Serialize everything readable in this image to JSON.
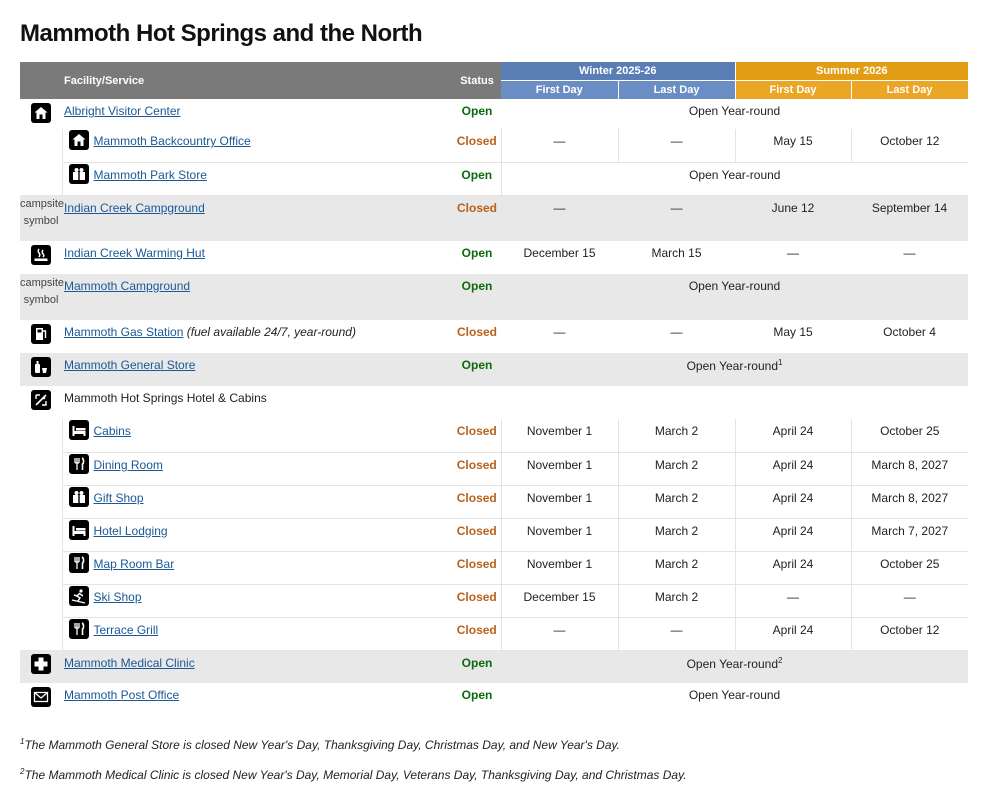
{
  "title": "Mammoth Hot Springs and the North",
  "table": {
    "headers": {
      "facility": "Facility/Service",
      "status": "Status",
      "winter": "Winter 2025-26",
      "summer": "Summer 2026",
      "days": [
        "First Day",
        "Last Day",
        "First Day",
        "Last Day"
      ]
    },
    "status_colors": {
      "Open": "#0b6b0b",
      "Closed": "#b8621b"
    },
    "rows": [
      {
        "name": "Albright Visitor Center",
        "status": "Open",
        "season": "Open Year-round",
        "children": [
          {
            "name": "Mammoth Backcountry Office",
            "status": "Closed",
            "dates": [
              "—",
              "—",
              "May 15",
              "October 12"
            ]
          },
          {
            "name": "Mammoth Park Store",
            "status": "Open",
            "season": "Open Year-round"
          }
        ]
      },
      {
        "name": "Indian Creek Campground",
        "icon_alt": "campsite symbol",
        "status": "Closed",
        "dates": [
          "—",
          "—",
          "June 12",
          "September 14"
        ]
      },
      {
        "name": "Indian Creek Warming Hut",
        "status": "Open",
        "dates": [
          "December 15",
          "March 15",
          "—",
          "—"
        ]
      },
      {
        "name": "Mammoth Campground",
        "icon_alt": "campsite symbol",
        "status": "Open",
        "season": "Open Year-round"
      },
      {
        "name": "Mammoth Gas Station",
        "note": "(fuel available 24/7, year-round)",
        "status": "Closed",
        "dates": [
          "—",
          "—",
          "May 15",
          "October 4"
        ]
      },
      {
        "name": "Mammoth General Store",
        "status": "Open",
        "season": "Open Year-round",
        "footnote_ref": "1"
      },
      {
        "name": "Mammoth Hot Springs Hotel & Cabins",
        "children": [
          {
            "name": "Cabins",
            "status": "Closed",
            "dates": [
              "November 1",
              "March 2",
              "April 24",
              "October 25"
            ]
          },
          {
            "name": "Dining Room",
            "status": "Closed",
            "dates": [
              "November 1",
              "March 2",
              "April 24",
              "March 8, 2027"
            ]
          },
          {
            "name": "Gift Shop",
            "status": "Closed",
            "dates": [
              "November 1",
              "March 2",
              "April 24",
              "March 8, 2027"
            ]
          },
          {
            "name": "Hotel Lodging",
            "status": "Closed",
            "dates": [
              "November 1",
              "March 2",
              "April 24",
              "March 7, 2027"
            ]
          },
          {
            "name": "Map Room Bar",
            "status": "Closed",
            "dates": [
              "November 1",
              "March 2",
              "April 24",
              "October 25"
            ]
          },
          {
            "name": "Ski Shop",
            "status": "Closed",
            "dates": [
              "December 15",
              "March 2",
              "—",
              "—"
            ]
          },
          {
            "name": "Terrace Grill",
            "status": "Closed",
            "dates": [
              "—",
              "—",
              "April 24",
              "October 12"
            ]
          }
        ]
      },
      {
        "name": "Mammoth Medical Clinic",
        "status": "Open",
        "season": "Open Year-round",
        "footnote_ref": "2"
      },
      {
        "name": "Mammoth Post Office",
        "status": "Open",
        "season": "Open Year-round"
      }
    ]
  },
  "footnotes": [
    {
      "mark": "1",
      "text": "The Mammoth General Store is closed New Year's Day, Thanksgiving Day, Christmas Day, and New Year's Day."
    },
    {
      "mark": "2",
      "text": "The Mammoth Medical Clinic is closed New Year's Day, Memorial Day, Veterans Day, Thanksgiving Day, and Christmas Day."
    }
  ]
}
